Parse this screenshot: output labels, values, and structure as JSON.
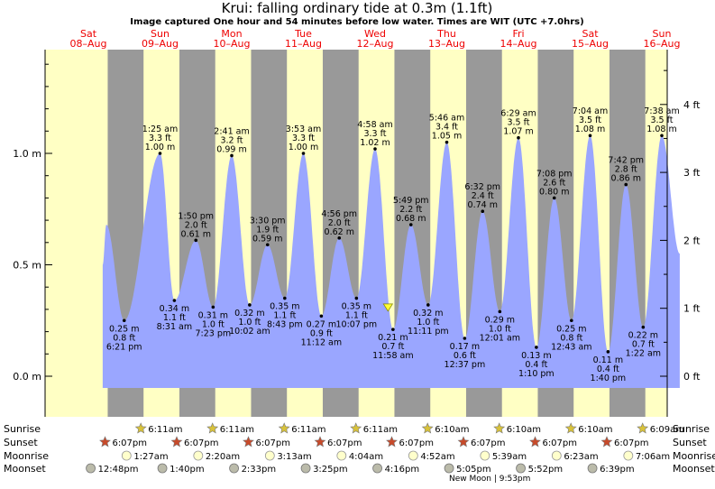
{
  "chart_data": {
    "type": "area",
    "title": "Krui: falling  ordinary tide at 0.3m (1.1ft)",
    "subtitle": "Image captured One hour and 54 minutes before low water. Times are WIT (UTC +7.0hrs)",
    "colors": {
      "day": "#ffffc4",
      "night": "#999999",
      "tide": "#9aa6ff",
      "day_label": "#ee0000",
      "marker": "#ffff33"
    },
    "days": [
      {
        "name": "Sat",
        "date": "08–Aug"
      },
      {
        "name": "Sun",
        "date": "09–Aug"
      },
      {
        "name": "Mon",
        "date": "10–Aug"
      },
      {
        "name": "Tue",
        "date": "11–Aug"
      },
      {
        "name": "Wed",
        "date": "12–Aug"
      },
      {
        "name": "Thu",
        "date": "13–Aug"
      },
      {
        "name": "Fri",
        "date": "14–Aug"
      },
      {
        "name": "Sat",
        "date": "15–Aug"
      },
      {
        "name": "Sun",
        "date": "16–Aug"
      }
    ],
    "y_left_ticks": [
      {
        "v": 0.0,
        "label": "0.0 m"
      },
      {
        "v": 0.5,
        "label": "0.5 m"
      },
      {
        "v": 1.0,
        "label": "1.0 m"
      }
    ],
    "y_right_ticks": [
      {
        "v": 0,
        "label": "0 ft"
      },
      {
        "v": 1,
        "label": "1 ft"
      },
      {
        "v": 2,
        "label": "2 ft"
      },
      {
        "v": 3,
        "label": "3 ft"
      },
      {
        "v": 4,
        "label": "4 ft"
      }
    ],
    "ylim": [
      -0.06,
      1.45
    ],
    "xlim": [
      0,
      8
    ],
    "extremes": [
      {
        "x": 0.25,
        "h": 0.68,
        "unlabeled": true
      },
      {
        "x": 0.5,
        "h": 0.25,
        "type": "low",
        "lines": [
          "0.25 m",
          "0.8 ft",
          "6:21 pm"
        ]
      },
      {
        "x": 1.0,
        "h": 1.0,
        "type": "high",
        "lines": [
          "1:25 am",
          "3.3 ft",
          "1.00 m"
        ]
      },
      {
        "x": 1.2,
        "h": 0.34,
        "type": "low",
        "lines": [
          "0.34 m",
          "1.1 ft",
          "8:31 am"
        ]
      },
      {
        "x": 1.5,
        "h": 0.61,
        "type": "high",
        "lines": [
          "1:50 pm",
          "2.0 ft",
          "0.61 m"
        ]
      },
      {
        "x": 1.74,
        "h": 0.31,
        "type": "low",
        "lines": [
          "0.31 m",
          "1.0 ft",
          "7:23 pm"
        ]
      },
      {
        "x": 2.0,
        "h": 0.99,
        "type": "high",
        "lines": [
          "2:41 am",
          "3.2 ft",
          "0.99 m"
        ]
      },
      {
        "x": 2.25,
        "h": 0.32,
        "type": "low",
        "lines": [
          "0.32 m",
          "1.0 ft",
          "10:02 am"
        ]
      },
      {
        "x": 2.5,
        "h": 0.59,
        "type": "high",
        "lines": [
          "3:30 pm",
          "1.9 ft",
          "0.59 m"
        ]
      },
      {
        "x": 2.74,
        "h": 0.35,
        "type": "low",
        "lines": [
          "0.35 m",
          "1.1 ft",
          "8:43 pm"
        ]
      },
      {
        "x": 3.0,
        "h": 1.0,
        "type": "high",
        "lines": [
          "3:53 am",
          "3.3 ft",
          "1.00 m"
        ]
      },
      {
        "x": 3.25,
        "h": 0.27,
        "type": "low",
        "lines": [
          "0.27 m",
          "0.9 ft",
          "11:12 am"
        ]
      },
      {
        "x": 3.5,
        "h": 0.62,
        "type": "high",
        "lines": [
          "4:56 pm",
          "2.0 ft",
          "0.62 m"
        ]
      },
      {
        "x": 3.74,
        "h": 0.35,
        "type": "low",
        "lines": [
          "0.35 m",
          "1.1 ft",
          "10:07 pm"
        ]
      },
      {
        "x": 4.0,
        "h": 1.02,
        "type": "high",
        "lines": [
          "4:58 am",
          "3.3 ft",
          "1.02 m"
        ]
      },
      {
        "x": 4.25,
        "h": 0.21,
        "type": "low",
        "lines": [
          "0.21 m",
          "0.7 ft",
          "11:58 am"
        ]
      },
      {
        "x": 4.5,
        "h": 0.68,
        "type": "high",
        "lines": [
          "5:49 pm",
          "2.2 ft",
          "0.68 m"
        ]
      },
      {
        "x": 4.74,
        "h": 0.32,
        "type": "low",
        "lines": [
          "0.32 m",
          "1.0 ft",
          "11:11 pm"
        ]
      },
      {
        "x": 5.0,
        "h": 1.05,
        "type": "high",
        "lines": [
          "5:46 am",
          "3.4 ft",
          "1.05 m"
        ]
      },
      {
        "x": 5.25,
        "h": 0.17,
        "type": "low",
        "lines": [
          "0.17 m",
          "0.6 ft",
          "12:37 pm"
        ]
      },
      {
        "x": 5.5,
        "h": 0.74,
        "type": "high",
        "lines": [
          "6:32 pm",
          "2.4 ft",
          "0.74 m"
        ]
      },
      {
        "x": 5.74,
        "h": 0.29,
        "type": "low",
        "lines": [
          "0.29 m",
          "1.0 ft",
          "12:01 am"
        ]
      },
      {
        "x": 6.0,
        "h": 1.07,
        "type": "high",
        "lines": [
          "6:29 am",
          "3.5 ft",
          "1.07 m"
        ]
      },
      {
        "x": 6.25,
        "h": 0.13,
        "type": "low",
        "lines": [
          "0.13 m",
          "0.4 ft",
          "1:10 pm"
        ]
      },
      {
        "x": 6.5,
        "h": 0.8,
        "type": "high",
        "lines": [
          "7:08 pm",
          "2.6 ft",
          "0.80 m"
        ]
      },
      {
        "x": 6.74,
        "h": 0.25,
        "type": "low",
        "lines": [
          "0.25 m",
          "0.8 ft",
          "12:43 am"
        ]
      },
      {
        "x": 7.0,
        "h": 1.08,
        "type": "high",
        "lines": [
          "7:04 am",
          "3.5 ft",
          "1.08 m"
        ]
      },
      {
        "x": 7.25,
        "h": 0.11,
        "type": "low",
        "lines": [
          "0.11 m",
          "0.4 ft",
          "1:40 pm"
        ]
      },
      {
        "x": 7.5,
        "h": 0.86,
        "type": "high",
        "lines": [
          "7:42 pm",
          "2.8 ft",
          "0.86 m"
        ]
      },
      {
        "x": 7.74,
        "h": 0.22,
        "type": "low",
        "lines": [
          "0.22 m",
          "0.7 ft",
          "1:22 am"
        ]
      },
      {
        "x": 8.0,
        "h": 1.08,
        "type": "high",
        "lines": [
          "7:38 am",
          "3.5 ft",
          "1.08 m"
        ]
      },
      {
        "x": 8.25,
        "h": 0.55,
        "unlabeled": true
      }
    ],
    "current": {
      "x": 4.18,
      "h": 0.3
    },
    "night_bands": [
      [
        0.27,
        0.77
      ],
      [
        1.27,
        1.77
      ],
      [
        2.27,
        2.77
      ],
      [
        3.27,
        3.77
      ],
      [
        4.27,
        4.77
      ],
      [
        5.27,
        5.77
      ],
      [
        6.27,
        6.77
      ],
      [
        7.27,
        7.77
      ]
    ],
    "sun_moon": {
      "row_labels": [
        "Sunrise",
        "Sunset",
        "Moonrise",
        "Moonset"
      ],
      "sunrise": [
        {
          "x": 0.77,
          "t": "6:11am"
        },
        {
          "x": 1.77,
          "t": "6:11am"
        },
        {
          "x": 2.77,
          "t": "6:11am"
        },
        {
          "x": 3.77,
          "t": "6:11am"
        },
        {
          "x": 4.77,
          "t": "6:10am"
        },
        {
          "x": 5.77,
          "t": "6:10am"
        },
        {
          "x": 6.77,
          "t": "6:10am"
        },
        {
          "x": 7.77,
          "t": "6:09am"
        }
      ],
      "sunset": [
        {
          "x": 0.27,
          "t": "6:07pm"
        },
        {
          "x": 1.27,
          "t": "6:07pm"
        },
        {
          "x": 2.27,
          "t": "6:07pm"
        },
        {
          "x": 3.27,
          "t": "6:07pm"
        },
        {
          "x": 4.27,
          "t": "6:07pm"
        },
        {
          "x": 5.27,
          "t": "6:07pm"
        },
        {
          "x": 6.27,
          "t": "6:07pm"
        },
        {
          "x": 7.27,
          "t": "6:07pm"
        }
      ],
      "moonrise": [
        {
          "x": 0.57,
          "t": "1:27am"
        },
        {
          "x": 1.57,
          "t": "2:20am"
        },
        {
          "x": 2.57,
          "t": "3:13am"
        },
        {
          "x": 3.57,
          "t": "4:04am"
        },
        {
          "x": 4.57,
          "t": "4:52am"
        },
        {
          "x": 5.57,
          "t": "5:39am"
        },
        {
          "x": 6.57,
          "t": "6:23am"
        },
        {
          "x": 7.57,
          "t": "7:06am"
        }
      ],
      "moonset": [
        {
          "x": 0.07,
          "t": "12:48pm"
        },
        {
          "x": 1.07,
          "t": "1:40pm"
        },
        {
          "x": 2.07,
          "t": "2:33pm"
        },
        {
          "x": 3.07,
          "t": "3:25pm"
        },
        {
          "x": 4.07,
          "t": "4:16pm"
        },
        {
          "x": 5.07,
          "t": "5:05pm"
        },
        {
          "x": 6.07,
          "t": "5:52pm"
        },
        {
          "x": 7.07,
          "t": "6:39pm"
        }
      ],
      "new_moon": "New Moon | 9:53pm"
    }
  }
}
